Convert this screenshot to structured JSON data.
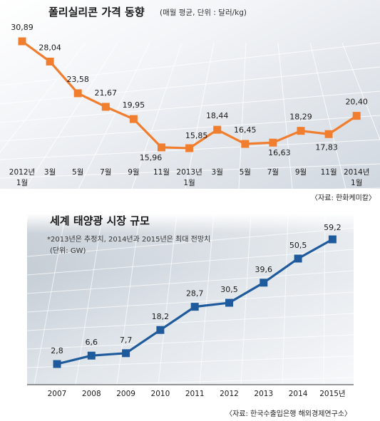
{
  "chart_data": [
    {
      "type": "line",
      "title": "폴리실리콘 가격 동향",
      "unit_note": "(매월 평균, 단위 : 달러/kg)",
      "source": "〈자료: 한화케미칼〉",
      "categories": [
        [
          "2012년",
          "1월"
        ],
        [
          "3월"
        ],
        [
          "5월"
        ],
        [
          "7월"
        ],
        [
          "9월"
        ],
        [
          "11월"
        ],
        [
          "2013년",
          "1월"
        ],
        [
          "3월"
        ],
        [
          "5월"
        ],
        [
          "7월"
        ],
        [
          "9월"
        ],
        [
          "11월"
        ],
        [
          "2014년",
          "1월"
        ]
      ],
      "values": [
        30.89,
        28.04,
        23.58,
        21.67,
        19.95,
        15.96,
        15.85,
        18.44,
        16.45,
        16.63,
        18.29,
        17.83,
        20.4
      ],
      "value_labels": [
        "30,89",
        "28,04",
        "23,58",
        "21,67",
        "19,95",
        "15,96",
        "15,85",
        "18,44",
        "16,45",
        "16,63",
        "18,29",
        "17,83",
        "20,40"
      ],
      "color": "#f07e2e"
    },
    {
      "type": "line",
      "title": "세계 태양광 시장 규모",
      "note": "*2013년은 추정치, 2014년과 2015년은 최대 전망치",
      "unit_note": "(단위: GW)",
      "source": "〈자료: 한국수출입은행 해외경제연구소〉",
      "categories": [
        "2007",
        "2008",
        "2009",
        "2010",
        "2011",
        "2012",
        "2013",
        "2014",
        "2015년"
      ],
      "values": [
        2.8,
        6.6,
        7.7,
        18.2,
        28.7,
        30.5,
        39.6,
        50.5,
        59.2
      ],
      "value_labels": [
        "2,8",
        "6,6",
        "7,7",
        "18,2",
        "28,7",
        "30,5",
        "39,6",
        "50,5",
        "59,2"
      ],
      "color": "#1f5a9c"
    }
  ]
}
